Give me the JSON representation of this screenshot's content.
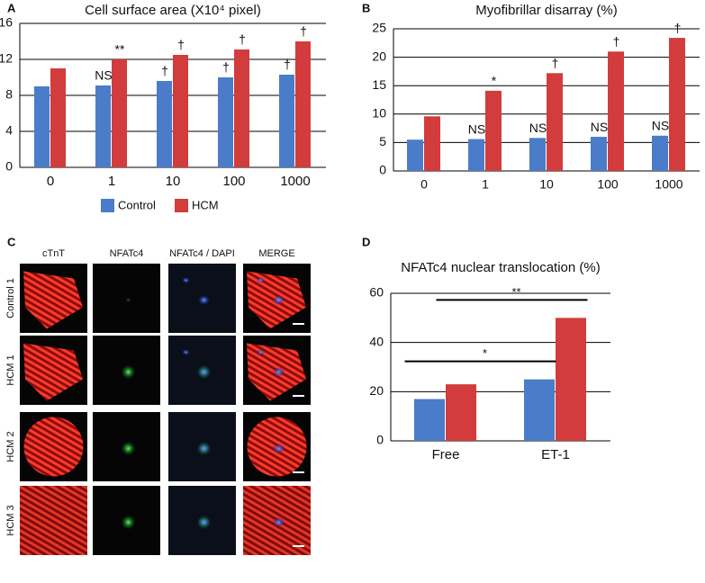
{
  "panel_labels": [
    "A",
    "B",
    "C",
    "D"
  ],
  "chart_data": [
    {
      "type": "bar",
      "title": "Cell surface area (X10⁴ pixel)",
      "categories": [
        "0",
        "1",
        "10",
        "100",
        "1000"
      ],
      "series": [
        {
          "name": "Control",
          "color": "#4a7cc9",
          "values": [
            9.0,
            9.1,
            9.6,
            10.0,
            10.3
          ],
          "annotations": [
            null,
            "NS",
            "†",
            "†",
            "†"
          ]
        },
        {
          "name": "HCM",
          "color": "#d23c3c",
          "values": [
            11.0,
            12.0,
            12.5,
            13.1,
            14.0
          ],
          "annotations": [
            null,
            "**",
            "†",
            "†",
            "†"
          ]
        }
      ],
      "ylim": [
        0,
        16
      ],
      "yticks": [
        0,
        4,
        8,
        12,
        16
      ],
      "grid": true,
      "legend": "bottom"
    },
    {
      "type": "bar",
      "title": "Myofibrillar disarray (%)",
      "categories": [
        "0",
        "1",
        "10",
        "100",
        "1000"
      ],
      "series": [
        {
          "name": "Control",
          "color": "#4a7cc9",
          "values": [
            5.5,
            5.6,
            5.8,
            6.0,
            6.2
          ],
          "annotations": [
            null,
            "NS",
            "NS",
            "NS",
            "NS"
          ]
        },
        {
          "name": "HCM",
          "color": "#d23c3c",
          "values": [
            9.6,
            14.1,
            17.2,
            21.0,
            23.4
          ],
          "annotations": [
            null,
            "*",
            "†",
            "†",
            "†"
          ]
        }
      ],
      "ylim": [
        0,
        25
      ],
      "yticks": [
        0,
        5,
        10,
        15,
        20,
        25
      ],
      "grid": true
    },
    {
      "type": "bar",
      "title": "NFATc4 nuclear translocation (%)",
      "categories": [
        "Free",
        "ET-1"
      ],
      "series": [
        {
          "name": "Control",
          "color": "#4a7cc9",
          "values": [
            17,
            25
          ]
        },
        {
          "name": "HCM",
          "color": "#d23c3c",
          "values": [
            23,
            50
          ]
        }
      ],
      "brackets": [
        {
          "label": "*",
          "series": 0
        },
        {
          "label": "**",
          "series": 1
        }
      ],
      "ylim": [
        0,
        60
      ],
      "yticks": [
        0,
        20,
        40,
        60
      ],
      "grid": true
    }
  ],
  "micrographs": {
    "columns": [
      "cTnT",
      "NFATc4",
      "NFATc4 / DAPI",
      "MERGE"
    ],
    "rows": [
      "Control 1",
      "HCM 1",
      "HCM 2",
      "HCM 3"
    ]
  }
}
